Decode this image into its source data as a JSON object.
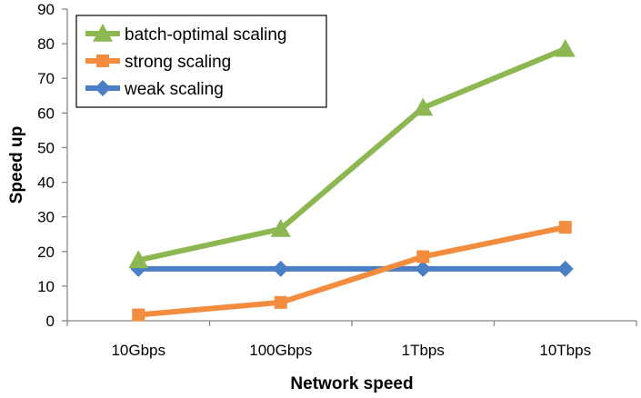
{
  "chart_data": {
    "type": "line",
    "title": "",
    "xlabel": "Network speed",
    "ylabel": "Speed up",
    "categories": [
      "10Gbps",
      "100Gbps",
      "1Tbps",
      "10Tbps"
    ],
    "ylim": [
      0,
      90
    ],
    "yticks": [
      0,
      10,
      20,
      30,
      40,
      50,
      60,
      70,
      80,
      90
    ],
    "grid": "none",
    "legend_position": "top-left",
    "series": [
      {
        "name": "batch-optimal scaling",
        "values": [
          17.5,
          26.5,
          61.5,
          78.5
        ],
        "color": "#8DB751",
        "marker": "triangle"
      },
      {
        "name": "strong scaling",
        "values": [
          1.7,
          5.3,
          18.5,
          27.0
        ],
        "color": "#F38C3E",
        "marker": "square"
      },
      {
        "name": "weak scaling",
        "values": [
          15.0,
          15.0,
          15.0,
          15.0
        ],
        "color": "#4A7EC5",
        "marker": "diamond"
      }
    ]
  }
}
